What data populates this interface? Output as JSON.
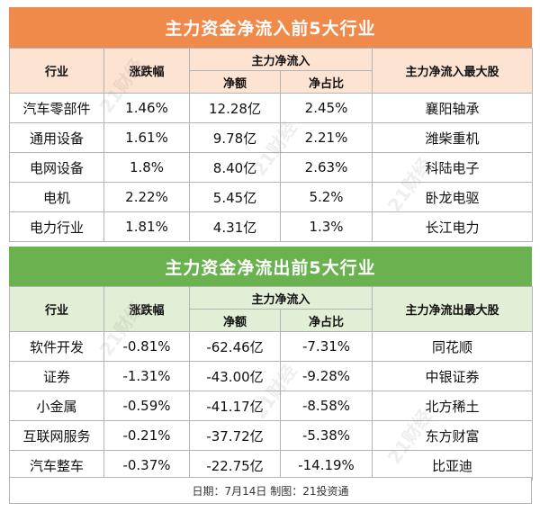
{
  "inflow": {
    "title": "主力资金净流入前5大行业",
    "headers": {
      "industry": "行业",
      "change": "涨跌幅",
      "group": "主力净流入",
      "net": "净额",
      "ratio": "净占比",
      "top_stock": "主力净流入最大股"
    },
    "rows": [
      {
        "industry": "汽车零部件",
        "change": "1.46%",
        "net": "12.28亿",
        "ratio": "2.45%",
        "top_stock": "襄阳轴承"
      },
      {
        "industry": "通用设备",
        "change": "1.61%",
        "net": "9.78亿",
        "ratio": "2.21%",
        "top_stock": "潍柴重机"
      },
      {
        "industry": "电网设备",
        "change": "1.8%",
        "net": "8.40亿",
        "ratio": "2.63%",
        "top_stock": "科陆电子"
      },
      {
        "industry": "电机",
        "change": "2.22%",
        "net": "5.45亿",
        "ratio": "5.2%",
        "top_stock": "卧龙电驱"
      },
      {
        "industry": "电力行业",
        "change": "1.81%",
        "net": "4.31亿",
        "ratio": "1.3%",
        "top_stock": "长江电力"
      }
    ]
  },
  "outflow": {
    "title": "主力资金净流出前5大行业",
    "headers": {
      "industry": "行业",
      "change": "涨跌幅",
      "group": "主力净流入",
      "net": "净额",
      "ratio": "净占比",
      "top_stock": "主力净流出最大股"
    },
    "rows": [
      {
        "industry": "软件开发",
        "change": "-0.81%",
        "net": "-62.46亿",
        "ratio": "-7.31%",
        "top_stock": "同花顺"
      },
      {
        "industry": "证券",
        "change": "-1.31%",
        "net": "-43.00亿",
        "ratio": "-9.28%",
        "top_stock": "中银证券"
      },
      {
        "industry": "小金属",
        "change": "-0.59%",
        "net": "-41.17亿",
        "ratio": "-8.58%",
        "top_stock": "北方稀土"
      },
      {
        "industry": "互联网服务",
        "change": "-0.21%",
        "net": "-37.72亿",
        "ratio": "-5.38%",
        "top_stock": "东方财富"
      },
      {
        "industry": "汽车整车",
        "change": "-0.37%",
        "net": "-22.75亿",
        "ratio": "-14.19%",
        "top_stock": "比亚迪"
      }
    ]
  },
  "footer": "日期：7月14日  制图：21投资通",
  "watermark": "21财经",
  "colors": {
    "inflow_title": "#f08a4b",
    "inflow_header": "#fde3d2",
    "outflow_title": "#6ab14f",
    "outflow_header": "#e1efd6",
    "border": "#b3b3b3"
  }
}
